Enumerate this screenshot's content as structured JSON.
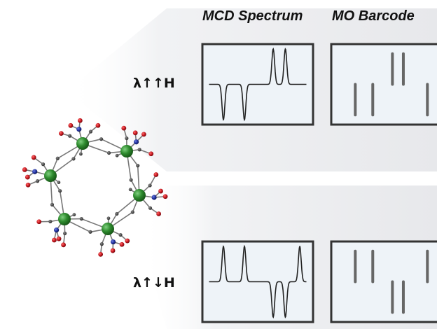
{
  "columns": {
    "mcd_title": "MCD Spectrum",
    "mo_title": "MO Barcode"
  },
  "rows": [
    {
      "label": "λ↑↑H",
      "mcd_peaks": [
        {
          "pos": 0.19,
          "sign": -1
        },
        {
          "pos": 0.38,
          "sign": -1
        },
        {
          "pos": 0.64,
          "sign": 1
        },
        {
          "pos": 0.75,
          "sign": 1
        }
      ],
      "mo_bars": [
        {
          "pos": 0.22,
          "level": "low"
        },
        {
          "pos": 0.38,
          "level": "low"
        },
        {
          "pos": 0.56,
          "level": "high"
        },
        {
          "pos": 0.66,
          "level": "high"
        },
        {
          "pos": 0.88,
          "level": "low"
        }
      ]
    },
    {
      "label": "λ↑↓H",
      "mcd_peaks": [
        {
          "pos": 0.19,
          "sign": 1
        },
        {
          "pos": 0.38,
          "sign": 1
        },
        {
          "pos": 0.64,
          "sign": -1
        },
        {
          "pos": 0.75,
          "sign": -1
        },
        {
          "pos": 0.88,
          "sign": 1
        }
      ],
      "mo_bars": [
        {
          "pos": 0.22,
          "level": "high"
        },
        {
          "pos": 0.38,
          "level": "high"
        },
        {
          "pos": 0.56,
          "level": "low"
        },
        {
          "pos": 0.66,
          "level": "low"
        },
        {
          "pos": 0.88,
          "level": "high"
        }
      ]
    }
  ],
  "colors": {
    "metal": "#2e8b2e",
    "oxygen": "#c0141c",
    "nitrogen": "#1f2f9a",
    "carbon": "#3a3a3a",
    "bond": "#777777",
    "plot_fill": "#eef3f8",
    "frame": "#333333",
    "bar": "#666666",
    "trace": "#222222"
  },
  "icons": {
    "molecule": "hexanuclear-lanthanide-wheel",
    "mcd": "spectrum-trace",
    "mo": "barcode-lines"
  }
}
